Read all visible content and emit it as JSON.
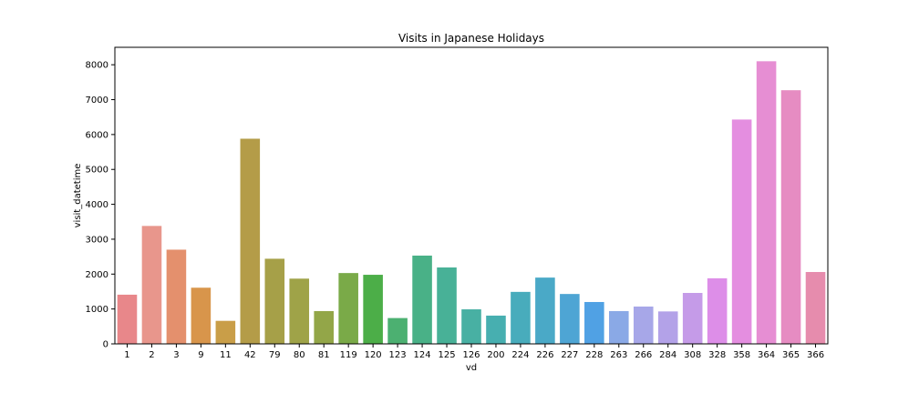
{
  "chart_data": {
    "type": "bar",
    "title": "Visits in Japanese Holidays",
    "xlabel": "vd",
    "ylabel": "visit_datetime",
    "categories": [
      "1",
      "2",
      "3",
      "9",
      "11",
      "42",
      "79",
      "80",
      "81",
      "119",
      "120",
      "123",
      "124",
      "125",
      "126",
      "200",
      "224",
      "226",
      "227",
      "228",
      "263",
      "266",
      "284",
      "308",
      "328",
      "358",
      "364",
      "365",
      "366"
    ],
    "values": [
      1410,
      3380,
      2700,
      1610,
      660,
      5880,
      2440,
      1870,
      940,
      2030,
      1980,
      740,
      2530,
      2190,
      990,
      810,
      1490,
      1900,
      1430,
      1200,
      940,
      1070,
      930,
      1460,
      1880,
      6430,
      8100,
      7270,
      2060
    ],
    "colors": [
      "#e8878a",
      "#e8968c",
      "#e4906d",
      "#d8954b",
      "#c99e48",
      "#b49c48",
      "#a6a048",
      "#9fa348",
      "#93a648",
      "#7aaa48",
      "#4cae48",
      "#4cb071",
      "#49b187",
      "#48b197",
      "#48b0a3",
      "#47afb0",
      "#48acbc",
      "#4aa9c7",
      "#4ea5d4",
      "#50a1e4",
      "#8aa9e6",
      "#a7a7e8",
      "#b3a2e8",
      "#c59be8",
      "#dd8ee8",
      "#e48ee0",
      "#e68ed3",
      "#e68cc2",
      "#e68cad"
    ],
    "ylim": [
      0,
      8500
    ],
    "yticks": [
      0,
      1000,
      2000,
      3000,
      4000,
      5000,
      6000,
      7000,
      8000
    ],
    "grid": false,
    "legend": "none"
  }
}
